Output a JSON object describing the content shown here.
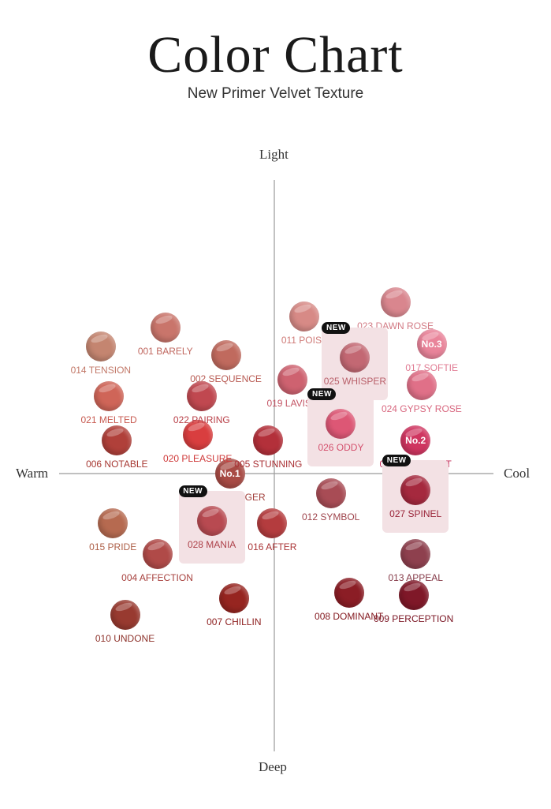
{
  "header": {
    "title": "Color Chart",
    "subtitle": "New Primer Velvet Texture"
  },
  "axes": {
    "top": "Light",
    "bottom": "Deep",
    "left": "Warm",
    "right": "Cool"
  },
  "badge_text": "NEW",
  "chart_data": {
    "type": "scatter",
    "title": "Color Chart",
    "subtitle": "New Primer Velvet Texture",
    "xlabel_left": "Warm",
    "xlabel_right": "Cool",
    "ylabel_top": "Light",
    "ylabel_bottom": "Deep",
    "xlim": [
      -1,
      1
    ],
    "ylim": [
      -1,
      1
    ],
    "points": [
      {
        "code": "001",
        "name": "001 BARELY",
        "x": -0.54,
        "y": 0.53,
        "color": "#c9756b",
        "label_color": "#c0675f"
      },
      {
        "code": "002",
        "name": "002 SEQUENCE",
        "x": -0.24,
        "y": 0.43,
        "color": "#c06a5e",
        "label_color": "#b85a52"
      },
      {
        "code": "003",
        "name": "003 STRANGER",
        "x": -0.22,
        "y": 0.0,
        "color": "#a84b45",
        "label_color": "#a2403c",
        "rank": "No.1"
      },
      {
        "code": "004",
        "name": "004 AFFECTION",
        "x": -0.58,
        "y": -0.29,
        "color": "#b04a48",
        "label_color": "#a7403d"
      },
      {
        "code": "005",
        "name": "005 STUNNING",
        "x": -0.03,
        "y": 0.12,
        "color": "#b3303a",
        "label_color": "#a93034"
      },
      {
        "code": "006",
        "name": "006 NOTABLE",
        "x": -0.78,
        "y": 0.12,
        "color": "#b0403a",
        "label_color": "#a73832"
      },
      {
        "code": "007",
        "name": "007 CHILLIN",
        "x": -0.2,
        "y": -0.45,
        "color": "#962520",
        "label_color": "#8e2020"
      },
      {
        "code": "008",
        "name": "008 DOMINANT",
        "x": 0.37,
        "y": -0.43,
        "color": "#8b1d25",
        "label_color": "#841a20"
      },
      {
        "code": "009",
        "name": "009 PERCEPTION",
        "x": 0.69,
        "y": -0.44,
        "color": "#7f1828",
        "label_color": "#7a1422"
      },
      {
        "code": "010",
        "name": "010 UNDONE",
        "x": -0.74,
        "y": -0.51,
        "color": "#983a30",
        "label_color": "#8e332c"
      },
      {
        "code": "011",
        "name": "011 POISE",
        "x": 0.15,
        "y": 0.57,
        "color": "#d78a86",
        "label_color": "#cf7a77"
      },
      {
        "code": "012",
        "name": "012 SYMBOL",
        "x": 0.28,
        "y": -0.07,
        "color": "#a84c55",
        "label_color": "#9e434b"
      },
      {
        "code": "013",
        "name": "013 APPEAL",
        "x": 0.7,
        "y": -0.29,
        "color": "#8e404e",
        "label_color": "#853a48"
      },
      {
        "code": "014",
        "name": "014 TENSION",
        "x": -0.86,
        "y": 0.46,
        "color": "#c48570",
        "label_color": "#c27868"
      },
      {
        "code": "015",
        "name": "015 PRIDE",
        "x": -0.8,
        "y": -0.18,
        "color": "#b66a50",
        "label_color": "#ad5f47"
      },
      {
        "code": "016",
        "name": "016 AFTER",
        "x": -0.01,
        "y": -0.18,
        "color": "#b43c3e",
        "label_color": "#aa3436"
      },
      {
        "code": "017",
        "name": "017 SOFTIE",
        "x": 0.78,
        "y": 0.47,
        "color": "#e9849a",
        "label_color": "#e07a92",
        "rank": "No.3"
      },
      {
        "code": "018",
        "name": "018 KNOCKOUT",
        "x": 0.7,
        "y": 0.12,
        "color": "#cf3560",
        "label_color": "#c32a56",
        "rank": "No.2"
      },
      {
        "code": "019",
        "name": "019 LAVISH",
        "x": 0.09,
        "y": 0.34,
        "color": "#ce6270",
        "label_color": "#c45666"
      },
      {
        "code": "020",
        "name": "020 PLEASURE",
        "x": -0.38,
        "y": 0.14,
        "color": "#d93e3f",
        "label_color": "#cf3939"
      },
      {
        "code": "021",
        "name": "021 MELTED",
        "x": -0.82,
        "y": 0.28,
        "color": "#cf6558",
        "label_color": "#c75a50"
      },
      {
        "code": "022",
        "name": "022 PAIRING",
        "x": -0.36,
        "y": 0.28,
        "color": "#c04850",
        "label_color": "#b83f47"
      },
      {
        "code": "023",
        "name": "023 DAWN ROSE",
        "x": 0.6,
        "y": 0.62,
        "color": "#d9868e",
        "label_color": "#d27b85"
      },
      {
        "code": "024",
        "name": "024 GYPSY ROSE",
        "x": 0.73,
        "y": 0.32,
        "color": "#e07088",
        "label_color": "#d8677f"
      },
      {
        "code": "025",
        "name": "025 WHISPER",
        "x": 0.4,
        "y": 0.42,
        "color": "#c36873",
        "label_color": "#b9606a",
        "is_new": true
      },
      {
        "code": "026",
        "name": "026 ODDY",
        "x": 0.33,
        "y": 0.18,
        "color": "#dd5775",
        "label_color": "#d4506d",
        "is_new": true
      },
      {
        "code": "027",
        "name": "027 SPINEL",
        "x": 0.7,
        "y": -0.06,
        "color": "#a5293e",
        "label_color": "#992237",
        "is_new": true
      },
      {
        "code": "028",
        "name": "028 MANIA",
        "x": -0.31,
        "y": -0.17,
        "color": "#b84a51",
        "label_color": "#ad4149",
        "is_new": true
      }
    ]
  },
  "colors": {
    "new_card": "#f3e1e4",
    "axis_line": "#9a9a9a",
    "badge_bg": "#111111"
  }
}
